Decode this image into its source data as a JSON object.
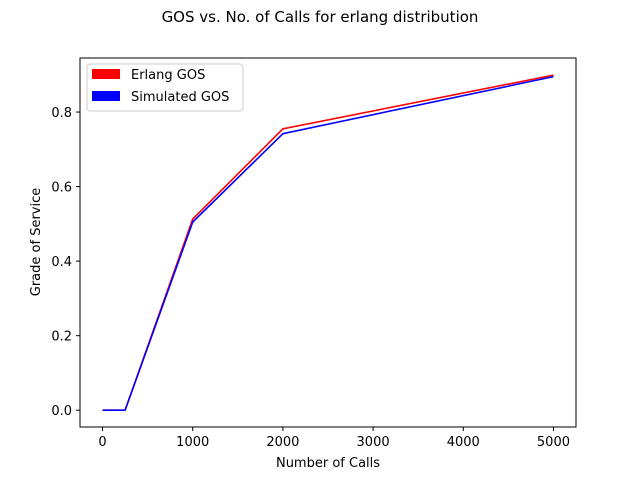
{
  "chart_data": {
    "type": "line",
    "title": "GOS vs. No. of Calls for erlang distribution",
    "xlabel": "Number of Calls",
    "ylabel": "Grade of Service",
    "xlim": [
      -250,
      5250
    ],
    "ylim": [
      -0.045,
      0.945
    ],
    "xticks": [
      0,
      1000,
      2000,
      3000,
      4000,
      5000
    ],
    "yticks": [
      0.0,
      0.2,
      0.4,
      0.6,
      0.8
    ],
    "xtick_labels": [
      "0",
      "1000",
      "2000",
      "3000",
      "4000",
      "5000"
    ],
    "ytick_labels": [
      "0.0",
      "0.2",
      "0.4",
      "0.6",
      "0.8"
    ],
    "grid": false,
    "legend_position": "top-left",
    "series": [
      {
        "name": "Erlang GOS",
        "color": "#ff0000",
        "x": [
          0,
          100,
          250,
          1000,
          2000,
          5000
        ],
        "y": [
          0.0,
          0.0,
          0.0,
          0.513,
          0.755,
          0.899
        ]
      },
      {
        "name": "Simulated GOS",
        "color": "#0000ff",
        "x": [
          0,
          100,
          250,
          1000,
          2000,
          5000
        ],
        "y": [
          0.0,
          0.0,
          0.0,
          0.505,
          0.742,
          0.895
        ]
      }
    ]
  }
}
